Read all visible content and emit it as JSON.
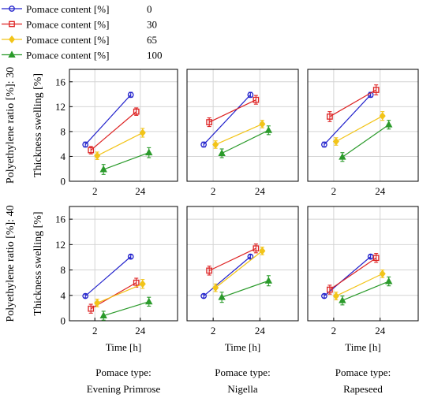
{
  "chart_data": {
    "type": "line",
    "legend": {
      "placement": "top-left",
      "items": [
        {
          "label": "Pomace content [%]",
          "value": "0",
          "color": "#2222cc",
          "marker": "circle"
        },
        {
          "label": "Pomace content [%]",
          "value": "30",
          "color": "#dd2222",
          "marker": "square"
        },
        {
          "label": "Pomace content [%]",
          "value": "65",
          "color": "#f2c418",
          "marker": "diamond"
        },
        {
          "label": "Pomace content [%]",
          "value": "100",
          "color": "#2a9a2a",
          "marker": "triangle"
        }
      ]
    },
    "row_labels": [
      "Polyethylene ratio [%]: 30",
      "Polyethylene ratio [%]: 40"
    ],
    "column_labels": [
      {
        "line1": "Pomace type:",
        "line2": "Evening Primrose"
      },
      {
        "line1": "Pomace type:",
        "line2": "Nigella"
      },
      {
        "line1": "Pomace type:",
        "line2": "Rapeseed"
      }
    ],
    "ylabel": "Thickness swelling [%]",
    "xlabel": "Time [h]",
    "x_categories": [
      "2",
      "24"
    ],
    "yticks": [
      0,
      4,
      8,
      12,
      16
    ],
    "ylim": [
      0,
      18
    ],
    "grid": true,
    "panels": [
      {
        "row": 0,
        "col": 0,
        "series": [
          {
            "pomace": "0",
            "values": [
              5.9,
              13.9
            ],
            "err": [
              0.4,
              0.4
            ]
          },
          {
            "pomace": "30",
            "values": [
              5.0,
              11.2
            ],
            "err": [
              0.6,
              0.6
            ]
          },
          {
            "pomace": "65",
            "values": [
              4.1,
              7.8
            ],
            "err": [
              0.6,
              0.7
            ]
          },
          {
            "pomace": "100",
            "values": [
              1.9,
              4.6
            ],
            "err": [
              0.8,
              0.8
            ]
          }
        ]
      },
      {
        "row": 0,
        "col": 1,
        "series": [
          {
            "pomace": "0",
            "values": [
              5.9,
              13.9
            ],
            "err": [
              0.4,
              0.4
            ]
          },
          {
            "pomace": "30",
            "values": [
              9.5,
              13.1
            ],
            "err": [
              0.7,
              0.7
            ]
          },
          {
            "pomace": "65",
            "values": [
              5.9,
              9.2
            ],
            "err": [
              0.6,
              0.6
            ]
          },
          {
            "pomace": "100",
            "values": [
              4.5,
              8.2
            ],
            "err": [
              0.7,
              0.7
            ]
          }
        ]
      },
      {
        "row": 0,
        "col": 2,
        "series": [
          {
            "pomace": "0",
            "values": [
              5.9,
              13.9
            ],
            "err": [
              0.4,
              0.4
            ]
          },
          {
            "pomace": "30",
            "values": [
              10.4,
              14.7
            ],
            "err": [
              0.8,
              0.8
            ]
          },
          {
            "pomace": "65",
            "values": [
              6.4,
              10.5
            ],
            "err": [
              0.6,
              0.7
            ]
          },
          {
            "pomace": "100",
            "values": [
              3.9,
              9.1
            ],
            "err": [
              0.7,
              0.7
            ]
          }
        ]
      },
      {
        "row": 1,
        "col": 0,
        "series": [
          {
            "pomace": "0",
            "values": [
              3.9,
              10.1
            ],
            "err": [
              0.3,
              0.3
            ]
          },
          {
            "pomace": "30",
            "values": [
              1.9,
              6.0
            ],
            "err": [
              0.7,
              0.7
            ]
          },
          {
            "pomace": "65",
            "values": [
              2.8,
              5.8
            ],
            "err": [
              0.6,
              0.7
            ]
          },
          {
            "pomace": "100",
            "values": [
              0.8,
              3.0
            ],
            "err": [
              0.7,
              0.7
            ]
          }
        ]
      },
      {
        "row": 1,
        "col": 1,
        "series": [
          {
            "pomace": "0",
            "values": [
              3.9,
              10.1
            ],
            "err": [
              0.3,
              0.3
            ]
          },
          {
            "pomace": "30",
            "values": [
              7.9,
              11.4
            ],
            "err": [
              0.7,
              0.7
            ]
          },
          {
            "pomace": "65",
            "values": [
              5.2,
              11.0
            ],
            "err": [
              0.6,
              0.6
            ]
          },
          {
            "pomace": "100",
            "values": [
              3.7,
              6.3
            ],
            "err": [
              0.8,
              0.8
            ]
          }
        ]
      },
      {
        "row": 1,
        "col": 2,
        "series": [
          {
            "pomace": "0",
            "values": [
              3.9,
              10.1
            ],
            "err": [
              0.3,
              0.3
            ]
          },
          {
            "pomace": "30",
            "values": [
              4.9,
              9.9
            ],
            "err": [
              0.7,
              0.7
            ]
          },
          {
            "pomace": "65",
            "values": [
              3.9,
              7.4
            ],
            "err": [
              0.6,
              0.6
            ]
          },
          {
            "pomace": "100",
            "values": [
              3.2,
              6.2
            ],
            "err": [
              0.7,
              0.7
            ]
          }
        ]
      }
    ]
  }
}
